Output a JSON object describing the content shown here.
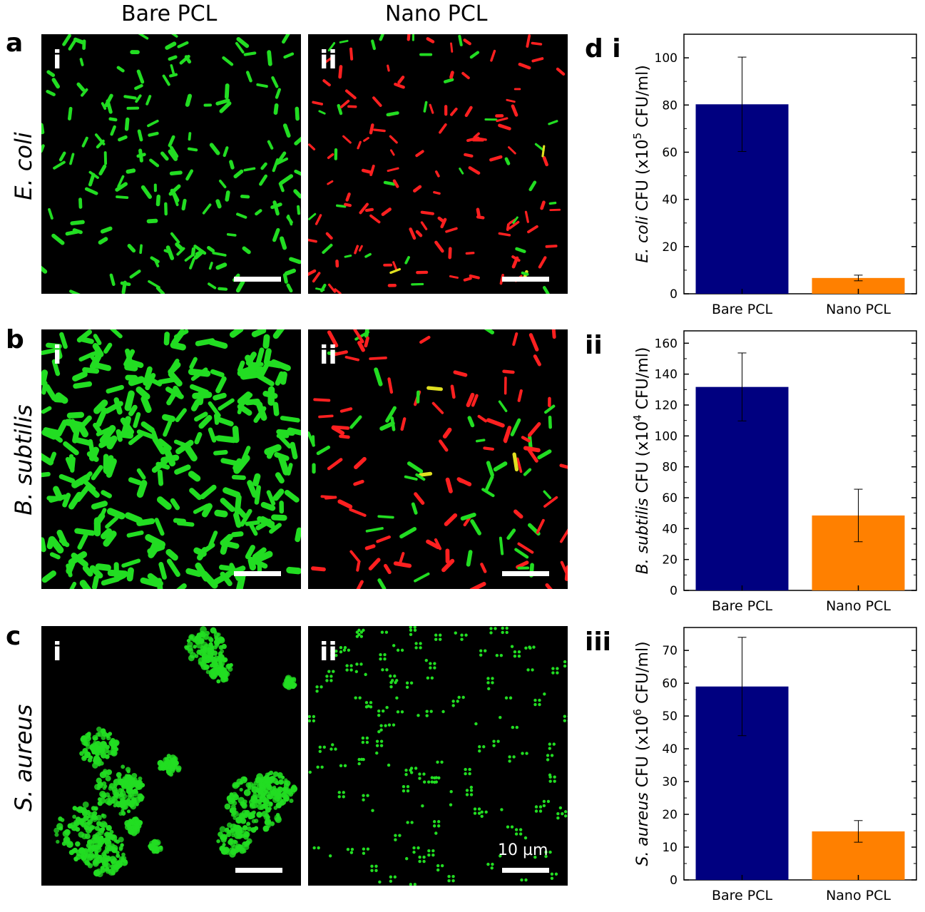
{
  "column_headers": {
    "left": "Bare PCL",
    "right": "Nano PCL"
  },
  "rows": [
    {
      "letter": "a",
      "species": "E. coli",
      "left_panel": "i",
      "right_panel": "ii"
    },
    {
      "letter": "b",
      "species": "B. subtilis",
      "left_panel": "i",
      "right_panel": "ii"
    },
    {
      "letter": "c",
      "species": "S. aureus",
      "left_panel": "i",
      "right_panel": "ii"
    }
  ],
  "scale_label": "10 µm",
  "colors": {
    "live": "#22dd22",
    "dead": "#ff2020",
    "bare_bar": "#000080",
    "nano_bar": "#ff8000"
  },
  "chart_data": [
    {
      "type": "bar",
      "panel": "d i",
      "categories": [
        "Bare PCL",
        "Nano PCL"
      ],
      "values": [
        80.3,
        6.7
      ],
      "errors": [
        20,
        1.2
      ],
      "ylabel_italic": "E. coli",
      "ylabel_rest": " CFU (x10",
      "ylabel_exp": "5",
      "ylabel_tail": " CFU/ml)",
      "ylim": [
        0,
        110
      ],
      "yticks": [
        0,
        20,
        40,
        60,
        80,
        100
      ]
    },
    {
      "type": "bar",
      "panel": "ii",
      "categories": [
        "Bare PCL",
        "Nano PCL"
      ],
      "values": [
        131.7,
        48.5
      ],
      "errors": [
        22,
        17
      ],
      "ylabel_italic": "B. subtilis",
      "ylabel_rest": " CFU (x10",
      "ylabel_exp": "4",
      "ylabel_tail": " CFU/ml)",
      "ylim": [
        0,
        168
      ],
      "yticks": [
        0,
        20,
        40,
        60,
        80,
        100,
        120,
        140,
        160
      ]
    },
    {
      "type": "bar",
      "panel": "iii",
      "categories": [
        "Bare PCL",
        "Nano PCL"
      ],
      "values": [
        59,
        14.8
      ],
      "errors": [
        15,
        3.3
      ],
      "ylabel_italic": "S. aureus",
      "ylabel_rest": " CFU (x10",
      "ylabel_exp": "6",
      "ylabel_tail": " CFU/ml)",
      "ylim": [
        0,
        77
      ],
      "yticks": [
        0,
        10,
        20,
        30,
        40,
        50,
        60,
        70
      ]
    }
  ]
}
